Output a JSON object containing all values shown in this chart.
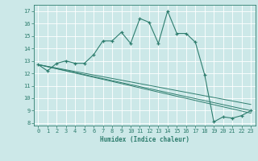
{
  "xlabel": "Humidex (Indice chaleur)",
  "ylabel": "",
  "bg_color": "#cce8e8",
  "grid_color": "#ffffff",
  "line_color": "#2e7d6e",
  "xlim": [
    -0.5,
    23.5
  ],
  "ylim": [
    7.8,
    17.5
  ],
  "yticks": [
    8,
    9,
    10,
    11,
    12,
    13,
    14,
    15,
    16,
    17
  ],
  "xticks": [
    0,
    1,
    2,
    3,
    4,
    5,
    6,
    7,
    8,
    9,
    10,
    11,
    12,
    13,
    14,
    15,
    16,
    17,
    18,
    19,
    20,
    21,
    22,
    23
  ],
  "series": [
    {
      "x": [
        0,
        1,
        2,
        3,
        4,
        5,
        6,
        7,
        8,
        9,
        10,
        11,
        12,
        13,
        14,
        15,
        16,
        17,
        18,
        19,
        20,
        21,
        22,
        23
      ],
      "y": [
        12.7,
        12.2,
        12.8,
        13.0,
        12.8,
        12.8,
        13.5,
        14.6,
        14.6,
        15.3,
        14.4,
        16.4,
        16.1,
        14.4,
        17.0,
        15.2,
        15.2,
        14.5,
        11.9,
        8.1,
        8.5,
        8.4,
        8.6,
        9.0
      ],
      "marker": true
    },
    {
      "x": [
        0,
        23
      ],
      "y": [
        12.7,
        9.5
      ],
      "marker": false
    },
    {
      "x": [
        0,
        23
      ],
      "y": [
        12.7,
        8.8
      ],
      "marker": false
    },
    {
      "x": [
        0,
        23
      ],
      "y": [
        12.7,
        9.0
      ],
      "marker": false
    }
  ]
}
